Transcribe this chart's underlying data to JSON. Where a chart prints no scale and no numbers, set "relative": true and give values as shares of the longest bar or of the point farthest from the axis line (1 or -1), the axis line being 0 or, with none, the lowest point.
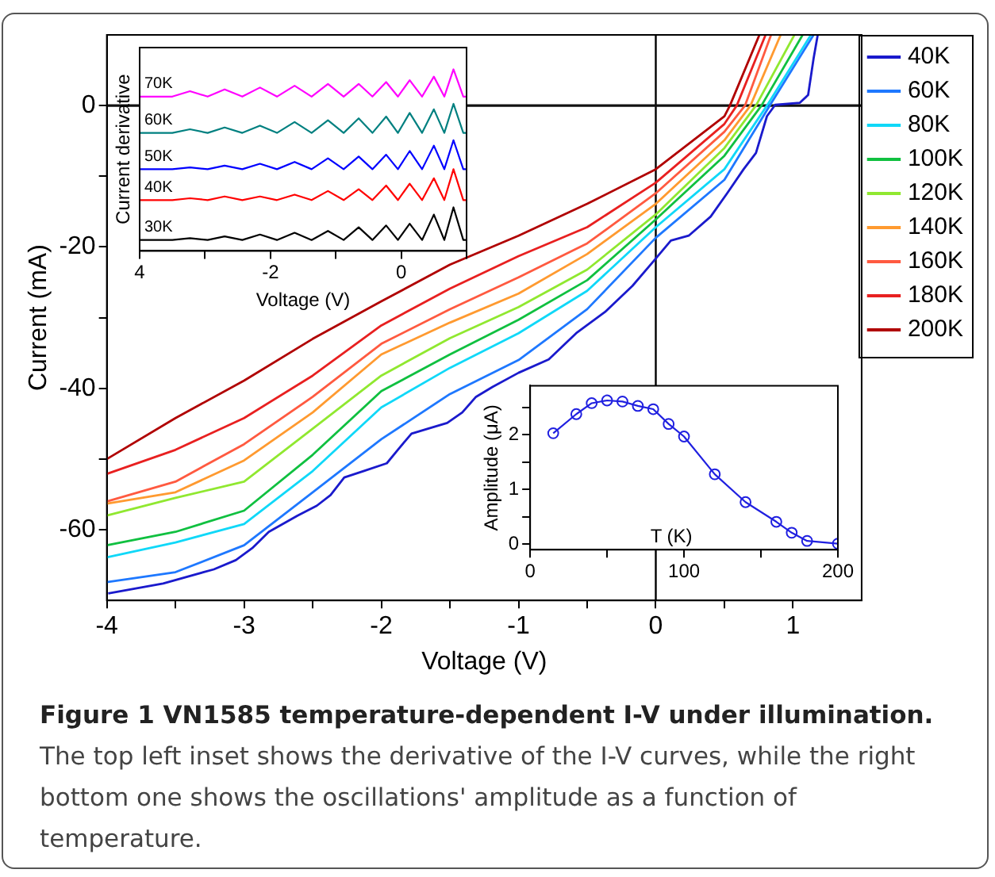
{
  "chart_data": [
    {
      "type": "line",
      "title": "Figure 1 VN1585 temperature-dependent I-V under illumination.",
      "xlabel": "Voltage (V)",
      "ylabel": "Current (mA)",
      "annotations": [
        "The top left inset shows the derivative of the I-V curves, while the right bottom one shows the oscillations' amplitude as a function of temperature."
      ],
      "xlim": [
        -4,
        1.5
      ],
      "xticks": [
        -4,
        {
          "value": -3.5,
          "label": null
        },
        -3,
        {
          "value": -2.5,
          "label": null
        },
        -2,
        {
          "value": -1.5,
          "label": null
        },
        -1,
        {
          "value": -0.5,
          "label": null
        },
        0,
        {
          "value": 0.5,
          "label": null
        },
        1
      ],
      "ylim": [
        -70,
        10
      ],
      "yticks": [
        -60,
        {
          "value": -50,
          "label": null
        },
        -40,
        {
          "value": -30,
          "label": null
        },
        -20,
        {
          "value": -10,
          "label": null
        },
        0
      ],
      "grid": false,
      "legend": "top right",
      "marker": "none",
      "line_style": "solid",
      "ref_lines": [
        {
          "axis": "x",
          "value": 0,
          "color": "#000000"
        },
        {
          "axis": "y",
          "value": 0,
          "color": "#111111"
        }
      ],
      "series": [
        {
          "name": "40K",
          "color": "#1a1acc",
          "x": [
            -3.99,
            -3.59,
            -3.22,
            -3.06,
            -2.94,
            -2.82,
            -2.61,
            -2.47,
            -2.37,
            -2.27,
            -2.13,
            -1.96,
            -1.88,
            -1.78,
            -1.66,
            -1.52,
            -1.41,
            -1.31,
            -1.19,
            -1.0,
            -0.78,
            -0.58,
            -0.37,
            -0.17,
            -0.02,
            0.11,
            0.24,
            0.4,
            0.52,
            0.64,
            0.73,
            0.81,
            0.87,
            1.05,
            1.11,
            1.15,
            1.18
          ],
          "values": [
            -69.0,
            -67.6,
            -65.6,
            -64.3,
            -62.6,
            -60.3,
            -58.0,
            -56.6,
            -55.1,
            -52.6,
            -51.7,
            -50.6,
            -48.7,
            -46.4,
            -45.7,
            -44.9,
            -43.4,
            -41.2,
            -39.8,
            -37.8,
            -35.9,
            -32.2,
            -29.2,
            -25.5,
            -22.1,
            -19.1,
            -18.4,
            -15.7,
            -12.4,
            -9.0,
            -6.7,
            -1.5,
            0.1,
            0.4,
            1.5,
            6.7,
            10.0
          ]
        },
        {
          "name": "60K",
          "color": "#1e78ff",
          "x": [
            -4,
            -3.5,
            -3,
            -2.5,
            -2,
            -1.5,
            -1,
            -0.5,
            0,
            0.5,
            0.83,
            1.15
          ],
          "values": [
            -67.4,
            -66.0,
            -62.2,
            -54.7,
            -47.2,
            -40.8,
            -36.0,
            -28.8,
            -18.7,
            -10.5,
            0,
            10
          ]
        },
        {
          "name": "80K",
          "color": "#10d8f8",
          "x": [
            -4,
            -3.5,
            -3,
            -2.5,
            -2,
            -1.5,
            -1,
            -0.5,
            0,
            0.5,
            0.81,
            1.13
          ],
          "values": [
            -63.9,
            -61.8,
            -59.2,
            -51.7,
            -42.7,
            -37.1,
            -32.2,
            -26.2,
            -17.2,
            -9.0,
            0,
            10
          ]
        },
        {
          "name": "100K",
          "color": "#10c040",
          "x": [
            -4,
            -3.5,
            -3,
            -2.5,
            -2,
            -1.5,
            -1,
            -0.5,
            0,
            0.5,
            0.77,
            1.07
          ],
          "values": [
            -62.2,
            -60.3,
            -57.3,
            -49.4,
            -40.4,
            -35.2,
            -30.3,
            -24.7,
            -16.1,
            -7.1,
            0,
            10
          ]
        },
        {
          "name": "120K",
          "color": "#90e830",
          "x": [
            -4,
            -3.5,
            -3,
            -2.5,
            -2,
            -1.5,
            -1,
            -0.5,
            0,
            0.5,
            0.73,
            1.01
          ],
          "values": [
            -58.0,
            -55.5,
            -53.2,
            -45.7,
            -38.2,
            -32.9,
            -28.5,
            -23.2,
            -15.4,
            -6.0,
            0,
            10
          ]
        },
        {
          "name": "140K",
          "color": "#ff9a30",
          "x": [
            -4,
            -3.5,
            -3,
            -2.5,
            -2,
            -1.5,
            -1,
            -0.5,
            0,
            0.5,
            0.69,
            0.91
          ],
          "values": [
            -56.3,
            -54.7,
            -50.2,
            -43.4,
            -35.2,
            -30.7,
            -26.6,
            -21.0,
            -13.9,
            -4.9,
            0,
            10
          ]
        },
        {
          "name": "160K",
          "color": "#ff5a40",
          "x": [
            -4,
            -3.5,
            -3,
            -2.5,
            -2,
            -1.5,
            -1,
            -0.5,
            0,
            0.5,
            0.65,
            0.84
          ],
          "values": [
            -56.0,
            -53.2,
            -47.9,
            -41.2,
            -33.7,
            -28.8,
            -24.3,
            -19.5,
            -12.4,
            -3.7,
            0,
            10
          ]
        },
        {
          "name": "180K",
          "color": "#e82020",
          "x": [
            -4,
            -3.5,
            -3,
            -2.5,
            -2,
            -1.5,
            -1,
            -0.5,
            0,
            0.5,
            0.59,
            0.8
          ],
          "values": [
            -52.1,
            -48.7,
            -44.2,
            -38.2,
            -31.1,
            -25.9,
            -21.3,
            -17.2,
            -10.9,
            -2.6,
            0,
            10
          ]
        },
        {
          "name": "200K",
          "color": "#b00000",
          "x": [
            -4,
            -3.5,
            -3,
            -2.5,
            -2,
            -1.5,
            -1,
            -0.5,
            0,
            0.5,
            0.54,
            0.755
          ],
          "values": [
            -50.0,
            -44.2,
            -38.9,
            -33.0,
            -27.7,
            -22.5,
            -18.4,
            -13.9,
            -9.0,
            -1.5,
            0,
            10
          ]
        }
      ]
    },
    {
      "type": "line",
      "xlabel": "Voltage (V)",
      "ylabel": "Current derivative",
      "relative": true,
      "legend": false,
      "grid": false,
      "marker": "none",
      "xlim": [
        -4,
        1
      ],
      "xticks": [
        {
          "value": -4,
          "label": "4"
        },
        {
          "value": -3,
          "label": null
        },
        -2,
        {
          "value": -1,
          "label": null
        },
        0,
        {
          "value": 1,
          "label": null
        }
      ],
      "x": [
        -4,
        -3.5,
        -3.23,
        -2.96,
        -2.7,
        -2.43,
        -2.16,
        -1.9,
        -1.63,
        -1.37,
        -1.12,
        -0.88,
        -0.65,
        -0.44,
        -0.23,
        -0.05,
        0.13,
        0.32,
        0.5,
        0.66,
        0.8,
        0.95,
        1.0
      ],
      "series": [
        {
          "name": "30K",
          "color": "#000000",
          "values": [
            0.06,
            0.06,
            0.07,
            0.06,
            0.08,
            0.06,
            0.09,
            0.06,
            0.1,
            0.06,
            0.11,
            0.06,
            0.13,
            0.06,
            0.14,
            0.06,
            0.15,
            0.06,
            0.2,
            0.06,
            0.24,
            0.06,
            0.06
          ]
        },
        {
          "name": "40K",
          "color": "#ff0000",
          "values": [
            0.28,
            0.28,
            0.29,
            0.28,
            0.3,
            0.28,
            0.3,
            0.28,
            0.31,
            0.28,
            0.33,
            0.28,
            0.34,
            0.28,
            0.36,
            0.28,
            0.37,
            0.28,
            0.4,
            0.28,
            0.45,
            0.28,
            0.28
          ]
        },
        {
          "name": "50K",
          "color": "#0000ff",
          "values": [
            0.45,
            0.45,
            0.46,
            0.45,
            0.47,
            0.45,
            0.48,
            0.45,
            0.49,
            0.45,
            0.51,
            0.45,
            0.52,
            0.45,
            0.53,
            0.45,
            0.55,
            0.45,
            0.58,
            0.45,
            0.61,
            0.45,
            0.45
          ]
        },
        {
          "name": "60K",
          "color": "#008080",
          "values": [
            0.65,
            0.65,
            0.67,
            0.65,
            0.68,
            0.65,
            0.69,
            0.65,
            0.71,
            0.65,
            0.72,
            0.65,
            0.73,
            0.65,
            0.74,
            0.65,
            0.76,
            0.65,
            0.78,
            0.65,
            0.81,
            0.65,
            0.65
          ]
        },
        {
          "name": "70K",
          "color": "#ff00ff",
          "values": [
            0.85,
            0.85,
            0.88,
            0.85,
            0.89,
            0.85,
            0.9,
            0.85,
            0.91,
            0.85,
            0.92,
            0.85,
            0.92,
            0.85,
            0.93,
            0.85,
            0.94,
            0.85,
            0.96,
            0.85,
            1.0,
            0.85,
            0.85
          ]
        }
      ]
    },
    {
      "type": "line",
      "xlabel": "T (K)",
      "ylabel": "Amplitude (μA)",
      "legend": false,
      "grid": false,
      "marker": "circle",
      "xlim": [
        0,
        200
      ],
      "xticks": [
        0,
        {
          "value": 50,
          "label": null
        },
        100,
        {
          "value": 150,
          "label": null
        },
        200
      ],
      "ylim": [
        -0.1,
        2.9
      ],
      "yticks": [
        0,
        {
          "value": 0.5,
          "label": null
        },
        1,
        {
          "value": 1.5,
          "label": null
        },
        2,
        {
          "value": 2.5,
          "label": null
        }
      ],
      "x": [
        15,
        30,
        40,
        50,
        60,
        70,
        80,
        90,
        100,
        120,
        140,
        160,
        170,
        180,
        200
      ],
      "series": [
        {
          "color": "#2020e0",
          "values": [
            2.03,
            2.38,
            2.58,
            2.63,
            2.61,
            2.53,
            2.47,
            2.2,
            1.97,
            1.28,
            0.77,
            0.41,
            0.21,
            0.06,
            0.01
          ]
        }
      ]
    }
  ]
}
